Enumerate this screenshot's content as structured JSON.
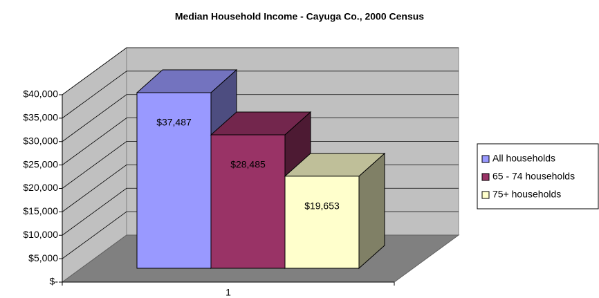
{
  "chart_data": {
    "type": "bar3d",
    "title": "Median Household Income - Cayuga Co., 2000 Census",
    "categories": [
      "1"
    ],
    "series": [
      {
        "name": "All households",
        "color": "#9999ff",
        "values": [
          37487
        ],
        "value_labels": [
          "$37,487"
        ]
      },
      {
        "name": "65 - 74 households",
        "color": "#993366",
        "values": [
          28485
        ],
        "value_labels": [
          "$28,485"
        ]
      },
      {
        "name": "75+ households",
        "color": "#ffffcc",
        "values": [
          19653
        ],
        "value_labels": [
          "$19,653"
        ]
      }
    ],
    "ylim": [
      0,
      40000
    ],
    "yticks": [
      {
        "value": 0,
        "label": "$-"
      },
      {
        "value": 5000,
        "label": "$5,000"
      },
      {
        "value": 10000,
        "label": "$10,000"
      },
      {
        "value": 15000,
        "label": "$15,000"
      },
      {
        "value": 20000,
        "label": "$20,000"
      },
      {
        "value": 25000,
        "label": "$25,000"
      },
      {
        "value": 30000,
        "label": "$30,000"
      },
      {
        "value": 35000,
        "label": "$35,000"
      },
      {
        "value": 40000,
        "label": "$40,000"
      }
    ],
    "grid": true,
    "legend": "right"
  }
}
